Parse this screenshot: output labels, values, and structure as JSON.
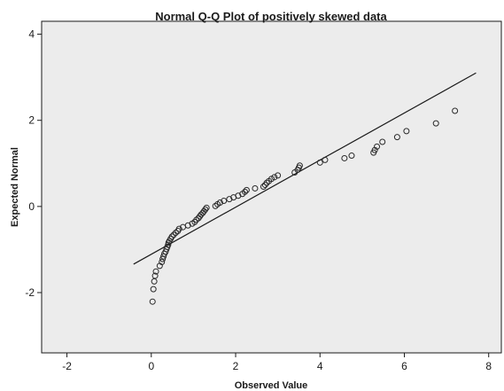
{
  "chart_data": {
    "type": "scatter",
    "title": "Normal Q-Q Plot of positively skewed data",
    "xlabel": "Observed Value",
    "ylabel": "Expected Normal",
    "xlim": [
      -2.6,
      8.3
    ],
    "ylim": [
      -3.4,
      4.3
    ],
    "xticks": [
      -2,
      0,
      2,
      4,
      6,
      8
    ],
    "yticks": [
      -2,
      0,
      2,
      4
    ],
    "xtick_labels": [
      "-2",
      "0",
      "2",
      "4",
      "6",
      "8"
    ],
    "ytick_labels": [
      "-2",
      "0",
      "2",
      "4"
    ],
    "grid": false,
    "background_color": "#ececec",
    "marker_color": "#2a2a2a",
    "line_color": "#1a1a1a",
    "reference_line": {
      "x": [
        -0.42,
        7.7
      ],
      "y": [
        -1.34,
        3.1
      ]
    },
    "points": [
      {
        "x": 0.03,
        "y": -2.21
      },
      {
        "x": 0.05,
        "y": -1.92
      },
      {
        "x": 0.07,
        "y": -1.74
      },
      {
        "x": 0.09,
        "y": -1.61
      },
      {
        "x": 0.11,
        "y": -1.51
      },
      {
        "x": 0.2,
        "y": -1.38
      },
      {
        "x": 0.25,
        "y": -1.29
      },
      {
        "x": 0.27,
        "y": -1.22
      },
      {
        "x": 0.29,
        "y": -1.16
      },
      {
        "x": 0.31,
        "y": -1.1
      },
      {
        "x": 0.34,
        "y": -1.05
      },
      {
        "x": 0.36,
        "y": -0.99
      },
      {
        "x": 0.38,
        "y": -0.94
      },
      {
        "x": 0.4,
        "y": -0.89
      },
      {
        "x": 0.41,
        "y": -0.84
      },
      {
        "x": 0.43,
        "y": -0.8
      },
      {
        "x": 0.46,
        "y": -0.75
      },
      {
        "x": 0.49,
        "y": -0.7
      },
      {
        "x": 0.53,
        "y": -0.66
      },
      {
        "x": 0.58,
        "y": -0.61
      },
      {
        "x": 0.63,
        "y": -0.57
      },
      {
        "x": 0.66,
        "y": -0.52
      },
      {
        "x": 0.75,
        "y": -0.48
      },
      {
        "x": 0.87,
        "y": -0.44
      },
      {
        "x": 0.97,
        "y": -0.4
      },
      {
        "x": 1.03,
        "y": -0.36
      },
      {
        "x": 1.07,
        "y": -0.31
      },
      {
        "x": 1.12,
        "y": -0.27
      },
      {
        "x": 1.15,
        "y": -0.23
      },
      {
        "x": 1.18,
        "y": -0.19
      },
      {
        "x": 1.22,
        "y": -0.15
      },
      {
        "x": 1.25,
        "y": -0.11
      },
      {
        "x": 1.28,
        "y": -0.07
      },
      {
        "x": 1.31,
        "y": -0.03
      },
      {
        "x": 1.52,
        "y": 0.01
      },
      {
        "x": 1.57,
        "y": 0.05
      },
      {
        "x": 1.63,
        "y": 0.09
      },
      {
        "x": 1.72,
        "y": 0.13
      },
      {
        "x": 1.85,
        "y": 0.17
      },
      {
        "x": 1.95,
        "y": 0.21
      },
      {
        "x": 2.06,
        "y": 0.25
      },
      {
        "x": 2.16,
        "y": 0.29
      },
      {
        "x": 2.22,
        "y": 0.34
      },
      {
        "x": 2.26,
        "y": 0.38
      },
      {
        "x": 2.46,
        "y": 0.42
      },
      {
        "x": 2.66,
        "y": 0.46
      },
      {
        "x": 2.7,
        "y": 0.5
      },
      {
        "x": 2.74,
        "y": 0.55
      },
      {
        "x": 2.79,
        "y": 0.59
      },
      {
        "x": 2.85,
        "y": 0.64
      },
      {
        "x": 2.92,
        "y": 0.68
      },
      {
        "x": 3.0,
        "y": 0.72
      },
      {
        "x": 3.4,
        "y": 0.79
      },
      {
        "x": 3.47,
        "y": 0.85
      },
      {
        "x": 3.5,
        "y": 0.9
      },
      {
        "x": 3.52,
        "y": 0.95
      },
      {
        "x": 4.0,
        "y": 1.02
      },
      {
        "x": 4.12,
        "y": 1.08
      },
      {
        "x": 4.58,
        "y": 1.12
      },
      {
        "x": 4.75,
        "y": 1.18
      },
      {
        "x": 5.27,
        "y": 1.25
      },
      {
        "x": 5.3,
        "y": 1.31
      },
      {
        "x": 5.35,
        "y": 1.39
      },
      {
        "x": 5.48,
        "y": 1.5
      },
      {
        "x": 5.83,
        "y": 1.61
      },
      {
        "x": 6.05,
        "y": 1.75
      },
      {
        "x": 6.75,
        "y": 1.93
      },
      {
        "x": 7.2,
        "y": 2.22
      }
    ]
  }
}
